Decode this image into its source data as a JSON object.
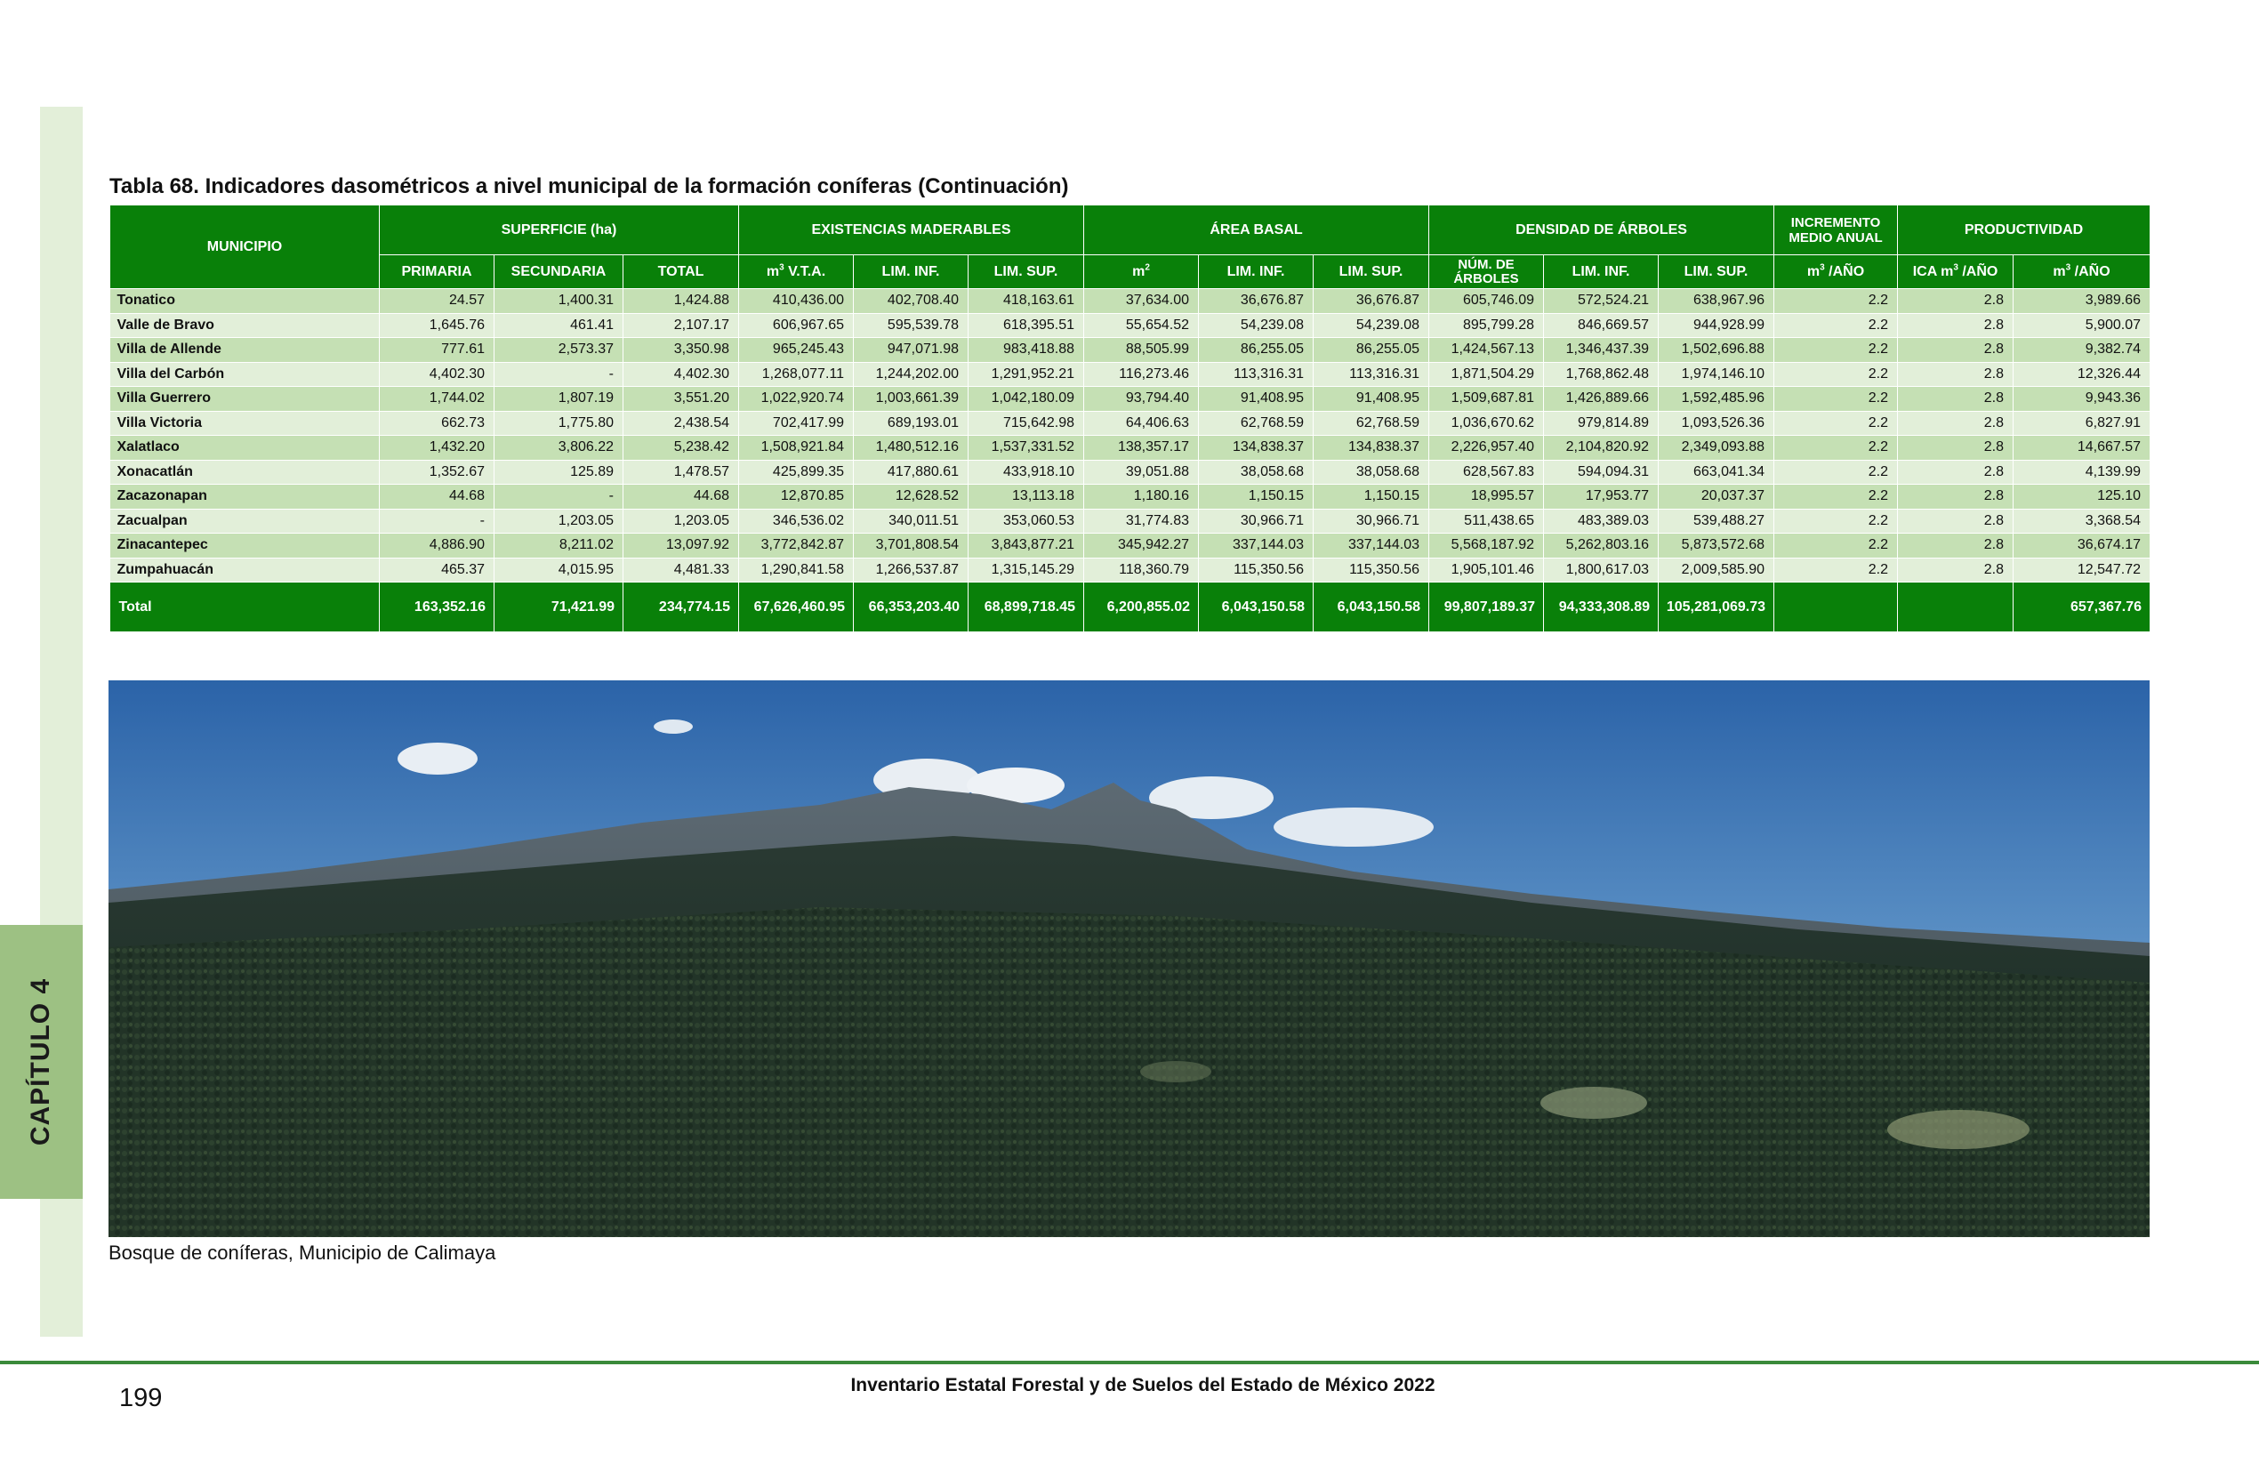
{
  "chapter": {
    "label": "CAPÍTULO 4"
  },
  "table": {
    "title": "Tabla 68. Indicadores dasométricos a nivel municipal de la formación coníferas (Continuación)",
    "groups": {
      "municipio": "MUNICIPIO",
      "superficie": "SUPERFICIE (ha)",
      "existencias": "EXISTENCIAS MADERABLES",
      "area_basal": "ÁREA BASAL",
      "densidad": "DENSIDAD DE ÁRBOLES",
      "incremento": "INCREMENTO MEDIO ANUAL",
      "productividad": "PRODUCTIVIDAD"
    },
    "subheaders": {
      "primaria": "PRIMARIA",
      "secundaria": "SECUNDARIA",
      "total": "TOTAL",
      "vta": "V.T.A.",
      "lim_inf": "LIM. INF.",
      "lim_sup": "LIM. SUP.",
      "num_arboles": "NÚM. DE ÁRBOLES",
      "anual": "/AÑO",
      "ica": "ICA m",
      "m": "m",
      "sup3": "3",
      "sup2": "2"
    },
    "rows": [
      [
        "Tonatico",
        "24.57",
        "1,400.31",
        "1,424.88",
        "410,436.00",
        "402,708.40",
        "418,163.61",
        "37,634.00",
        "36,676.87",
        "36,676.87",
        "605,746.09",
        "572,524.21",
        "638,967.96",
        "2.2",
        "2.8",
        "3,989.66"
      ],
      [
        "Valle de Bravo",
        "1,645.76",
        "461.41",
        "2,107.17",
        "606,967.65",
        "595,539.78",
        "618,395.51",
        "55,654.52",
        "54,239.08",
        "54,239.08",
        "895,799.28",
        "846,669.57",
        "944,928.99",
        "2.2",
        "2.8",
        "5,900.07"
      ],
      [
        "Villa de Allende",
        "777.61",
        "2,573.37",
        "3,350.98",
        "965,245.43",
        "947,071.98",
        "983,418.88",
        "88,505.99",
        "86,255.05",
        "86,255.05",
        "1,424,567.13",
        "1,346,437.39",
        "1,502,696.88",
        "2.2",
        "2.8",
        "9,382.74"
      ],
      [
        "Villa del Carbón",
        "4,402.30",
        "-",
        "4,402.30",
        "1,268,077.11",
        "1,244,202.00",
        "1,291,952.21",
        "116,273.46",
        "113,316.31",
        "113,316.31",
        "1,871,504.29",
        "1,768,862.48",
        "1,974,146.10",
        "2.2",
        "2.8",
        "12,326.44"
      ],
      [
        "Villa Guerrero",
        "1,744.02",
        "1,807.19",
        "3,551.20",
        "1,022,920.74",
        "1,003,661.39",
        "1,042,180.09",
        "93,794.40",
        "91,408.95",
        "91,408.95",
        "1,509,687.81",
        "1,426,889.66",
        "1,592,485.96",
        "2.2",
        "2.8",
        "9,943.36"
      ],
      [
        "Villa Victoria",
        "662.73",
        "1,775.80",
        "2,438.54",
        "702,417.99",
        "689,193.01",
        "715,642.98",
        "64,406.63",
        "62,768.59",
        "62,768.59",
        "1,036,670.62",
        "979,814.89",
        "1,093,526.36",
        "2.2",
        "2.8",
        "6,827.91"
      ],
      [
        "Xalatlaco",
        "1,432.20",
        "3,806.22",
        "5,238.42",
        "1,508,921.84",
        "1,480,512.16",
        "1,537,331.52",
        "138,357.17",
        "134,838.37",
        "134,838.37",
        "2,226,957.40",
        "2,104,820.92",
        "2,349,093.88",
        "2.2",
        "2.8",
        "14,667.57"
      ],
      [
        "Xonacatlán",
        "1,352.67",
        "125.89",
        "1,478.57",
        "425,899.35",
        "417,880.61",
        "433,918.10",
        "39,051.88",
        "38,058.68",
        "38,058.68",
        "628,567.83",
        "594,094.31",
        "663,041.34",
        "2.2",
        "2.8",
        "4,139.99"
      ],
      [
        "Zacazonapan",
        "44.68",
        "-",
        "44.68",
        "12,870.85",
        "12,628.52",
        "13,113.18",
        "1,180.16",
        "1,150.15",
        "1,150.15",
        "18,995.57",
        "17,953.77",
        "20,037.37",
        "2.2",
        "2.8",
        "125.10"
      ],
      [
        "Zacualpan",
        "-",
        "1,203.05",
        "1,203.05",
        "346,536.02",
        "340,011.51",
        "353,060.53",
        "31,774.83",
        "30,966.71",
        "30,966.71",
        "511,438.65",
        "483,389.03",
        "539,488.27",
        "2.2",
        "2.8",
        "3,368.54"
      ],
      [
        "Zinacantepec",
        "4,886.90",
        "8,211.02",
        "13,097.92",
        "3,772,842.87",
        "3,701,808.54",
        "3,843,877.21",
        "345,942.27",
        "337,144.03",
        "337,144.03",
        "5,568,187.92",
        "5,262,803.16",
        "5,873,572.68",
        "2.2",
        "2.8",
        "36,674.17"
      ],
      [
        "Zumpahuacán",
        "465.37",
        "4,015.95",
        "4,481.33",
        "1,290,841.58",
        "1,266,537.87",
        "1,315,145.29",
        "118,360.79",
        "115,350.56",
        "115,350.56",
        "1,905,101.46",
        "1,800,617.03",
        "2,009,585.90",
        "2.2",
        "2.8",
        "12,547.72"
      ]
    ],
    "total": [
      "Total",
      "163,352.16",
      "71,421.99",
      "234,774.15",
      "67,626,460.95",
      "66,353,203.40",
      "68,899,718.45",
      "6,200,855.02",
      "6,043,150.58",
      "6,043,150.58",
      "99,807,189.37",
      "94,333,308.89",
      "105,281,069.73",
      "",
      "",
      "657,367.76"
    ]
  },
  "photo": {
    "caption": "Bosque de coníferas, Municipio de Calimaya"
  },
  "footer": {
    "page_number": "199",
    "publication": "Inventario Estatal Forestal y de Suelos del Estado de México 2022"
  }
}
